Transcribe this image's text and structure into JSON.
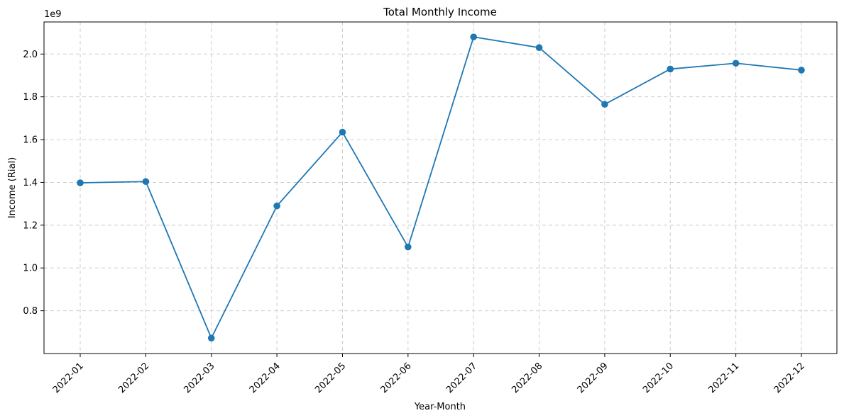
{
  "chart_data": {
    "type": "line",
    "title": "Total Monthly Income",
    "xlabel": "Year-Month",
    "ylabel": "Income (Rial)",
    "y_offset_label": "1e9",
    "categories": [
      "2022-01",
      "2022-02",
      "2022-03",
      "2022-04",
      "2022-05",
      "2022-06",
      "2022-07",
      "2022-08",
      "2022-09",
      "2022-10",
      "2022-11",
      "2022-12"
    ],
    "series": [
      {
        "values": [
          1.398,
          1.404,
          0.672,
          1.29,
          1.635,
          1.098,
          2.08,
          2.03,
          1.765,
          1.93,
          1.957,
          1.925
        ]
      }
    ],
    "y_ticks": [
      "0.8",
      "1.0",
      "1.2",
      "1.4",
      "1.6",
      "1.8",
      "2.0"
    ],
    "ylim": [
      0.6,
      2.15
    ],
    "grid": true,
    "marker": "circle",
    "line_color": "#1f77b4",
    "grid_color": "#cccccc"
  }
}
